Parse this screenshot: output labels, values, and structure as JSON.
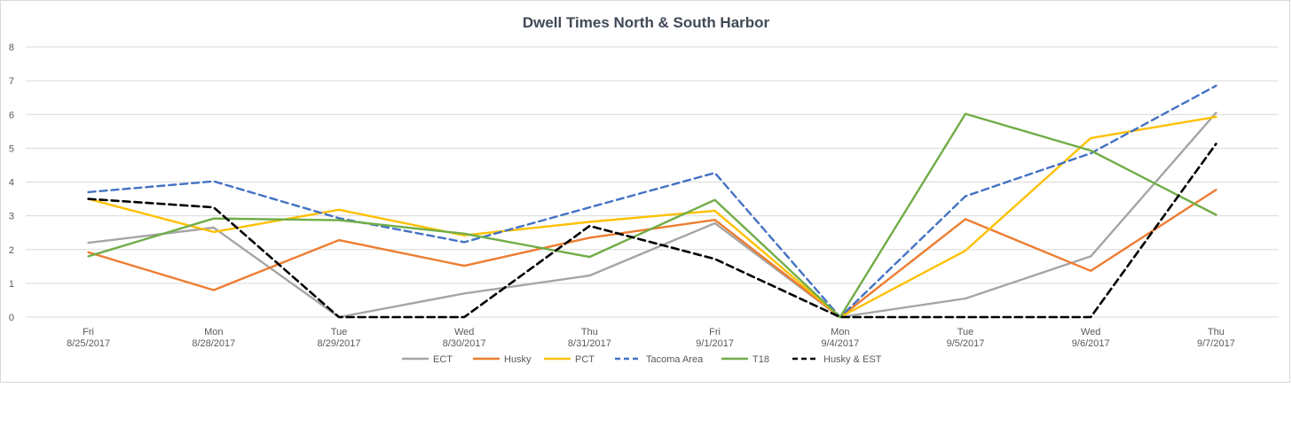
{
  "chart_data": {
    "type": "line",
    "title": "Dwell Times North & South Harbor",
    "xlabel": "",
    "ylabel": "",
    "ylim": [
      0,
      8
    ],
    "yticks": [
      0,
      1,
      2,
      3,
      4,
      5,
      6,
      7,
      8
    ],
    "grid": "horizontal",
    "legend": "bottom",
    "categories": [
      {
        "day": "Fri",
        "date": "8/25/2017"
      },
      {
        "day": "Mon",
        "date": "8/28/2017"
      },
      {
        "day": "Tue",
        "date": "8/29/2017"
      },
      {
        "day": "Wed",
        "date": "8/30/2017"
      },
      {
        "day": "Thu",
        "date": "8/31/2017"
      },
      {
        "day": "Fri",
        "date": "9/1/2017"
      },
      {
        "day": "Mon",
        "date": "9/4/2017"
      },
      {
        "day": "Tue",
        "date": "9/5/2017"
      },
      {
        "day": "Wed",
        "date": "9/6/2017"
      },
      {
        "day": "Thu",
        "date": "9/7/2017"
      }
    ],
    "series": [
      {
        "name": "ECT",
        "color": "#a5a5a5",
        "dash": "solid",
        "values": [
          2.2,
          2.65,
          0.0,
          0.7,
          1.23,
          2.78,
          0.0,
          0.55,
          1.8,
          6.05
        ]
      },
      {
        "name": "Husky",
        "color": "#ed7d31",
        "dash": "solid",
        "values": [
          1.92,
          0.8,
          2.28,
          1.52,
          2.35,
          2.88,
          0.0,
          2.9,
          1.37,
          3.77
        ]
      },
      {
        "name": "PCT",
        "color": "#ffc000",
        "dash": "solid",
        "values": [
          3.5,
          2.52,
          3.18,
          2.42,
          2.82,
          3.15,
          0.0,
          1.97,
          5.3,
          5.93
        ]
      },
      {
        "name": "Tacoma Area",
        "color": "#4472c4",
        "dash": "dashed",
        "values": [
          3.7,
          4.02,
          2.93,
          2.22,
          3.25,
          4.27,
          0.0,
          3.58,
          4.85,
          6.85
        ]
      },
      {
        "name": "T18",
        "color": "#70ad47",
        "dash": "solid",
        "values": [
          1.8,
          2.92,
          2.87,
          2.47,
          1.78,
          3.47,
          0.0,
          6.02,
          4.93,
          3.03
        ]
      },
      {
        "name": "Husky & EST",
        "color": "#000000",
        "dash": "dashed",
        "values": [
          3.5,
          3.25,
          0.0,
          0.0,
          2.7,
          1.72,
          0.0,
          0.0,
          0.0,
          5.13
        ]
      }
    ]
  }
}
